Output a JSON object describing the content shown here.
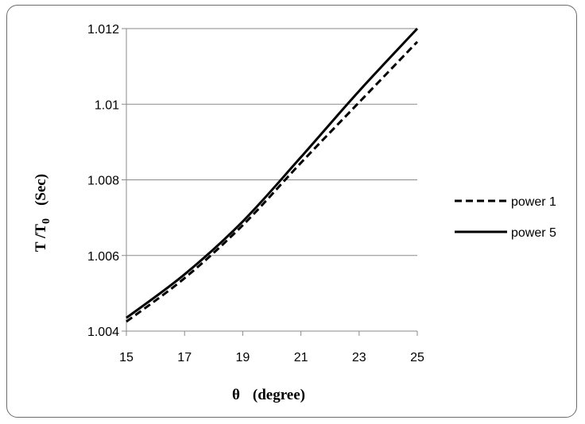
{
  "chart_data": {
    "type": "line",
    "xlabel_symbol": "θ",
    "xlabel_unit": "(degree)",
    "ylabel_main": "T /T",
    "ylabel_sub": "0",
    "ylabel_unit": "(Sec)",
    "x_ticks": [
      "15",
      "17",
      "19",
      "21",
      "23",
      "25"
    ],
    "y_ticks": [
      "1.004",
      "1.006",
      "1.008",
      "1.01",
      "1.012"
    ],
    "xlim": [
      15,
      25
    ],
    "ylim": [
      1.004,
      1.012
    ],
    "grid": "horizontal",
    "legend_position": "right",
    "x": [
      15,
      17,
      19,
      21,
      23,
      25
    ],
    "series": [
      {
        "name": "power 1",
        "style": "dashed",
        "values": [
          1.00425,
          1.0054,
          1.0068,
          1.00845,
          1.01005,
          1.01165
        ]
      },
      {
        "name": "power 5",
        "style": "solid",
        "values": [
          1.00435,
          1.0055,
          1.0069,
          1.0086,
          1.01035,
          1.012
        ]
      }
    ]
  }
}
